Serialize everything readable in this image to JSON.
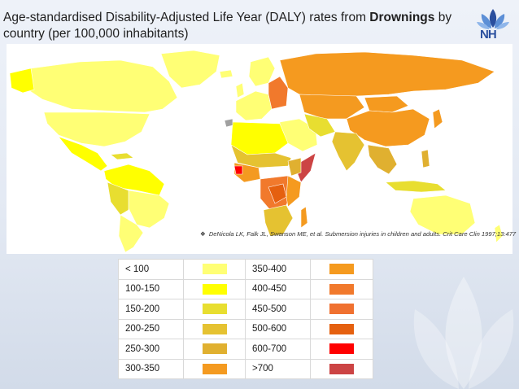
{
  "slide": {
    "title_prefix": "Age-standardised Disability-Adjusted Life Year (DALY) rates from ",
    "title_bold": "Drownings",
    "title_suffix": " by country (per 100,000 inhabitants)"
  },
  "logo": {
    "text": "NH",
    "icon": "lotus-logo-icon"
  },
  "map": {
    "citation_bullet": "❖",
    "citation": "DeNicola LK, Falk JL, Swanson ME, et al. Submersion injuries in children and adults. Crit Care Clin 1997;13:477",
    "colors": {
      "lt100": "#ffff75",
      "c100_150": "#ffff00",
      "c150_200": "#e8de30",
      "c200_250": "#e5c231",
      "c250_300": "#e0b030",
      "c300_350": "#f49a20",
      "c350_400": "#f59a1f",
      "c400_450": "#f1792c",
      "c450_500": "#f07130",
      "c500_600": "#e5600f",
      "c600_700": "#ff0000",
      "gt700": "#cc4444",
      "nodata": "#a0a0a0"
    }
  },
  "legend": {
    "rows": [
      {
        "left_label": "< 100",
        "left_color": "#ffff75",
        "right_label": "350-400",
        "right_color": "#f59a1f"
      },
      {
        "left_label": "100-150",
        "left_color": "#ffff00",
        "right_label": "400-450",
        "right_color": "#f1792c"
      },
      {
        "left_label": "150-200",
        "left_color": "#e8de30",
        "right_label": "450-500",
        "right_color": "#f07130"
      },
      {
        "left_label": "200-250",
        "left_color": "#e5c231",
        "right_label": "500-600",
        "right_color": "#e5600f"
      },
      {
        "left_label": "250-300",
        "left_color": "#e0b030",
        "right_label": "600-700",
        "right_color": "#ff0000"
      },
      {
        "left_label": "300-350",
        "left_color": "#f49a20",
        "right_label": ">700",
        "right_color": "#cc4444"
      }
    ]
  }
}
